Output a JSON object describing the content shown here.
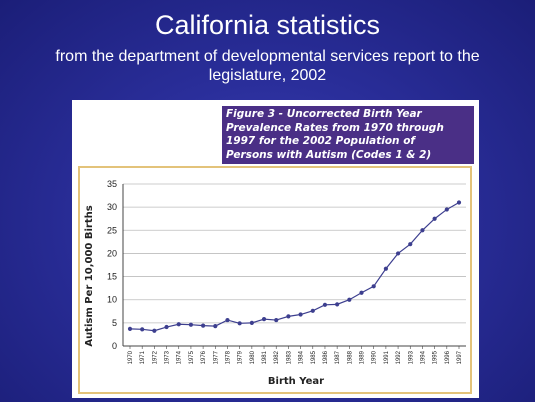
{
  "slide": {
    "title": "California statistics",
    "subtitle": "from the department of developmental services report to the legislature, 2002"
  },
  "figure": {
    "caption": "Figure 3 - Uncorrected Birth Year\nPrevalence Rates from 1970 through\n1997 for the 2002 Population of\nPersons with Autism (Codes 1 & 2)"
  },
  "colors": {
    "background": "#2a2e9a",
    "caption_bg": "#4a2f86",
    "frame": "#e3c37a",
    "series": "#3d3f8f"
  },
  "chart_data": {
    "type": "line",
    "title": "Figure 3 - Uncorrected Birth Year Prevalence Rates from 1970 through 1997 for the 2002 Population of Persons with Autism (Codes 1 & 2)",
    "xlabel": "Birth Year",
    "ylabel": "Autism Per 10,000 Births",
    "x": [
      "1970",
      "1971",
      "1972",
      "1973",
      "1974",
      "1975",
      "1976",
      "1977",
      "1978",
      "1979",
      "1980",
      "1981",
      "1982",
      "1983",
      "1984",
      "1985",
      "1986",
      "1987",
      "1988",
      "1989",
      "1990",
      "1991",
      "1992",
      "1993",
      "1994",
      "1995",
      "1996",
      "1997"
    ],
    "series": [
      {
        "values": [
          3.7,
          3.6,
          3.3,
          4.1,
          4.7,
          4.6,
          4.4,
          4.3,
          5.6,
          4.9,
          5.0,
          5.8,
          5.6,
          6.4,
          6.8,
          7.6,
          8.9,
          9.0,
          10.0,
          11.5,
          12.9,
          16.7,
          20.0,
          22.0,
          25.0,
          27.5,
          29.5,
          31.0
        ]
      }
    ],
    "ylim": [
      0,
      35
    ],
    "yticks": [
      0,
      5,
      10,
      15,
      20,
      25,
      30,
      35
    ],
    "grid": "horizontal",
    "legend": "none"
  }
}
